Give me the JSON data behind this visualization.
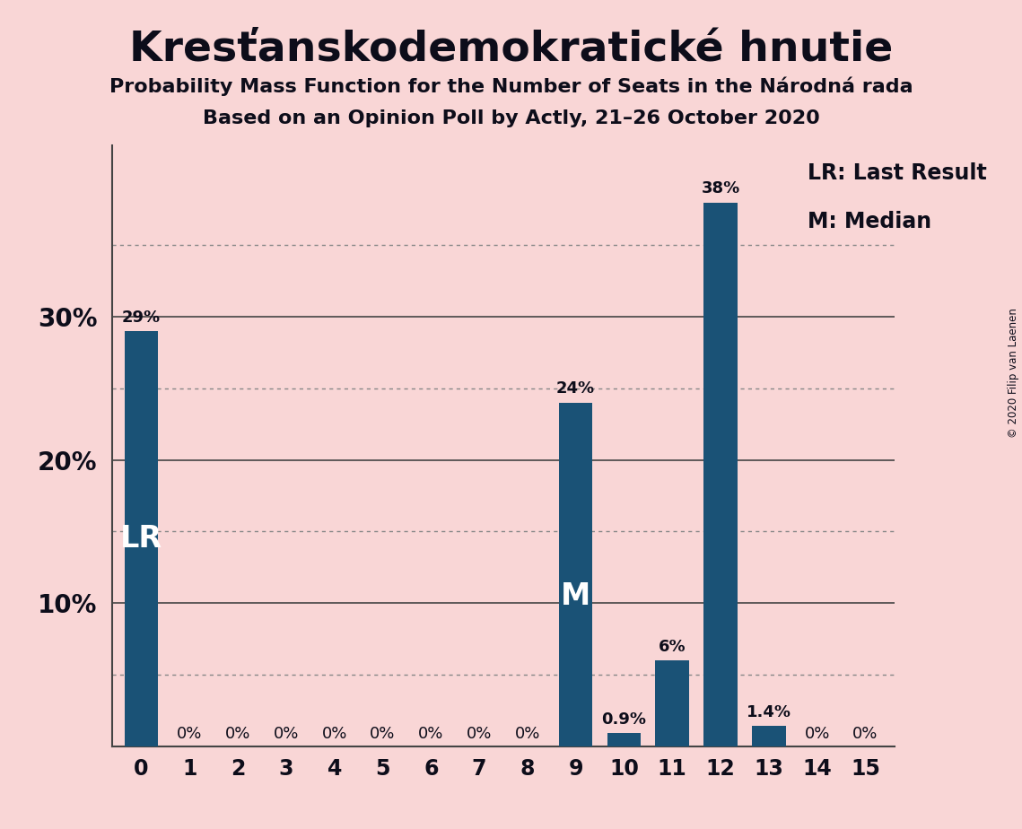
{
  "title": "Kresťanskodemokratické hnutie",
  "subtitle1": "Probability Mass Function for the Number of Seats in the Národná rada",
  "subtitle2": "Based on an Opinion Poll by Actly, 21–26 October 2020",
  "copyright": "© 2020 Filip van Laenen",
  "categories": [
    0,
    1,
    2,
    3,
    4,
    5,
    6,
    7,
    8,
    9,
    10,
    11,
    12,
    13,
    14,
    15
  ],
  "values": [
    0.29,
    0.0,
    0.0,
    0.0,
    0.0,
    0.0,
    0.0,
    0.0,
    0.0,
    0.24,
    0.009,
    0.06,
    0.38,
    0.014,
    0.0,
    0.0
  ],
  "bar_labels": [
    "29%",
    "0%",
    "0%",
    "0%",
    "0%",
    "0%",
    "0%",
    "0%",
    "0%",
    "24%",
    "0.9%",
    "6%",
    "38%",
    "1.4%",
    "0%",
    "0%"
  ],
  "bar_color": "#1a5276",
  "background_color": "#f9d6d6",
  "text_color": "#0d0d1a",
  "lr_bar": 0,
  "median_bar": 9,
  "ylim": [
    0,
    0.42
  ],
  "major_yticks": [
    0.1,
    0.2,
    0.3
  ],
  "major_ytick_labels": [
    "10%",
    "20%",
    "30%"
  ],
  "dotted_yticks": [
    0.05,
    0.15,
    0.25,
    0.35
  ],
  "legend_text1": "LR: Last Result",
  "legend_text2": "M: Median"
}
